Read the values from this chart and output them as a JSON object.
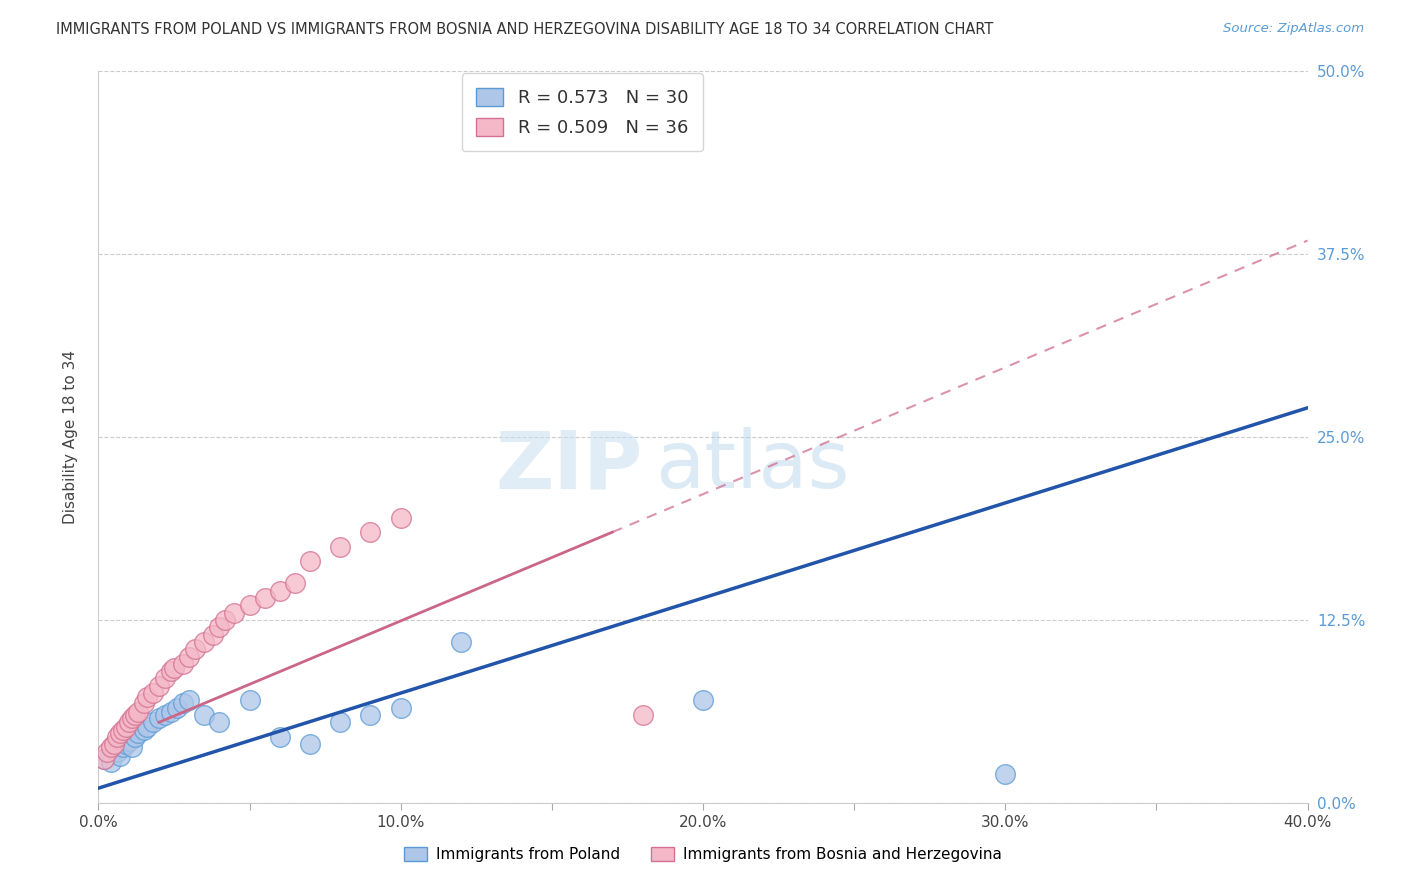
{
  "title": "IMMIGRANTS FROM POLAND VS IMMIGRANTS FROM BOSNIA AND HERZEGOVINA DISABILITY AGE 18 TO 34 CORRELATION CHART",
  "source": "Source: ZipAtlas.com",
  "ylabel": "Disability Age 18 to 34",
  "xlim": [
    0.0,
    0.4
  ],
  "ylim": [
    0.0,
    0.5
  ],
  "xtick_labels": [
    "0.0%",
    "",
    "10.0%",
    "",
    "20.0%",
    "",
    "30.0%",
    "",
    "40.0%"
  ],
  "xtick_vals": [
    0.0,
    0.05,
    0.1,
    0.15,
    0.2,
    0.25,
    0.3,
    0.35,
    0.4
  ],
  "ytick_labels": [
    "0.0%",
    "12.5%",
    "25.0%",
    "37.5%",
    "50.0%"
  ],
  "ytick_vals": [
    0.0,
    0.125,
    0.25,
    0.375,
    0.5
  ],
  "poland_color": "#aec6e8",
  "poland_edge_color": "#5b9bd5",
  "bosnia_color": "#f4b8c8",
  "bosnia_edge_color": "#d47090",
  "poland_R": 0.573,
  "poland_N": 30,
  "bosnia_R": 0.509,
  "bosnia_N": 36,
  "poland_line_color": "#2255aa",
  "bosnia_line_color": "#cc6688",
  "watermark_zip": "ZIP",
  "watermark_atlas": "atlas",
  "legend_label_poland": "Immigrants from Poland",
  "legend_label_bosnia": "Immigrants from Bosnia and Herzegovina",
  "poland_scatter_x": [
    0.002,
    0.004,
    0.006,
    0.007,
    0.008,
    0.009,
    0.01,
    0.011,
    0.012,
    0.013,
    0.015,
    0.016,
    0.018,
    0.02,
    0.022,
    0.024,
    0.026,
    0.028,
    0.03,
    0.035,
    0.04,
    0.05,
    0.06,
    0.07,
    0.08,
    0.09,
    0.1,
    0.12,
    0.2,
    0.3
  ],
  "poland_scatter_y": [
    0.03,
    0.028,
    0.035,
    0.032,
    0.038,
    0.04,
    0.042,
    0.038,
    0.045,
    0.048,
    0.05,
    0.052,
    0.055,
    0.058,
    0.06,
    0.062,
    0.065,
    0.068,
    0.07,
    0.06,
    0.055,
    0.07,
    0.045,
    0.04,
    0.055,
    0.06,
    0.065,
    0.11,
    0.07,
    0.02
  ],
  "bosnia_scatter_x": [
    0.002,
    0.003,
    0.004,
    0.005,
    0.006,
    0.007,
    0.008,
    0.009,
    0.01,
    0.011,
    0.012,
    0.013,
    0.015,
    0.016,
    0.018,
    0.02,
    0.022,
    0.024,
    0.025,
    0.028,
    0.03,
    0.032,
    0.035,
    0.038,
    0.04,
    0.042,
    0.045,
    0.05,
    0.055,
    0.06,
    0.065,
    0.07,
    0.08,
    0.09,
    0.1,
    0.18
  ],
  "bosnia_scatter_y": [
    0.03,
    0.035,
    0.038,
    0.04,
    0.045,
    0.048,
    0.05,
    0.052,
    0.055,
    0.058,
    0.06,
    0.062,
    0.068,
    0.072,
    0.075,
    0.08,
    0.085,
    0.09,
    0.092,
    0.095,
    0.1,
    0.105,
    0.11,
    0.115,
    0.12,
    0.125,
    0.13,
    0.135,
    0.14,
    0.145,
    0.15,
    0.165,
    0.175,
    0.185,
    0.195,
    0.06
  ],
  "background_color": "#ffffff",
  "grid_color": "#cccccc",
  "figsize": [
    14.06,
    8.92
  ],
  "dpi": 100
}
